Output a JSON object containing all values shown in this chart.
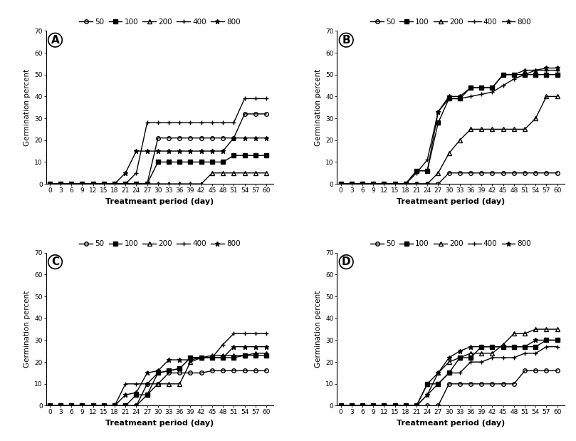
{
  "x": [
    0,
    3,
    6,
    9,
    12,
    15,
    18,
    21,
    24,
    27,
    30,
    33,
    36,
    39,
    42,
    45,
    48,
    51,
    54,
    57,
    60
  ],
  "series_labels": [
    "50",
    "100",
    "200",
    "400",
    "800"
  ],
  "series_markers": [
    "o",
    "s",
    "^",
    "+",
    "*"
  ],
  "series_fillstyle": [
    "none",
    "full",
    "none",
    "full",
    "full"
  ],
  "panels": {
    "A": {
      "label": "A",
      "data": {
        "50": [
          0,
          0,
          0,
          0,
          0,
          0,
          0,
          0,
          0,
          0,
          21,
          21,
          21,
          21,
          21,
          21,
          21,
          21,
          32,
          32,
          32
        ],
        "100": [
          0,
          0,
          0,
          0,
          0,
          0,
          0,
          0,
          0,
          0,
          10,
          10,
          10,
          10,
          10,
          10,
          10,
          13,
          13,
          13,
          13
        ],
        "200": [
          0,
          0,
          0,
          0,
          0,
          0,
          0,
          0,
          0,
          0,
          0,
          0,
          0,
          0,
          0,
          5,
          5,
          5,
          5,
          5,
          5
        ],
        "400": [
          0,
          0,
          0,
          0,
          0,
          0,
          0,
          0,
          5,
          28,
          28,
          28,
          28,
          28,
          28,
          28,
          28,
          28,
          39,
          39,
          39
        ],
        "800": [
          0,
          0,
          0,
          0,
          0,
          0,
          0,
          5,
          15,
          15,
          15,
          15,
          15,
          15,
          15,
          15,
          15,
          21,
          21,
          21,
          21
        ]
      }
    },
    "B": {
      "label": "B",
      "data": {
        "50": [
          0,
          0,
          0,
          0,
          0,
          0,
          0,
          0,
          0,
          0,
          5,
          5,
          5,
          5,
          5,
          5,
          5,
          5,
          5,
          5,
          5
        ],
        "100": [
          0,
          0,
          0,
          0,
          0,
          0,
          0,
          6,
          6,
          28,
          39,
          39,
          44,
          44,
          44,
          50,
          50,
          50,
          50,
          50,
          50
        ],
        "200": [
          0,
          0,
          0,
          0,
          0,
          0,
          0,
          0,
          0,
          5,
          14,
          20,
          25,
          25,
          25,
          25,
          25,
          25,
          30,
          40,
          40
        ],
        "400": [
          0,
          0,
          0,
          0,
          0,
          0,
          0,
          5,
          11,
          33,
          39,
          39,
          40,
          41,
          42,
          45,
          48,
          50,
          52,
          52,
          52
        ],
        "800": [
          0,
          0,
          0,
          0,
          0,
          0,
          0,
          6,
          6,
          33,
          40,
          40,
          44,
          44,
          44,
          50,
          50,
          52,
          52,
          53,
          53
        ]
      }
    },
    "C": {
      "label": "C",
      "data": {
        "50": [
          0,
          0,
          0,
          0,
          0,
          0,
          0,
          0,
          0,
          10,
          10,
          15,
          15,
          15,
          15,
          16,
          16,
          16,
          16,
          16,
          16
        ],
        "100": [
          0,
          0,
          0,
          0,
          0,
          0,
          0,
          0,
          5,
          5,
          15,
          16,
          17,
          22,
          22,
          22,
          22,
          22,
          23,
          23,
          23
        ],
        "200": [
          0,
          0,
          0,
          0,
          0,
          0,
          0,
          0,
          0,
          5,
          10,
          10,
          10,
          20,
          22,
          23,
          23,
          23,
          23,
          24,
          24
        ],
        "400": [
          0,
          0,
          0,
          0,
          0,
          0,
          0,
          10,
          10,
          10,
          15,
          16,
          17,
          22,
          22,
          22,
          28,
          33,
          33,
          33,
          33
        ],
        "800": [
          0,
          0,
          0,
          0,
          0,
          0,
          0,
          5,
          6,
          15,
          16,
          21,
          21,
          21,
          22,
          22,
          22,
          27,
          27,
          27,
          27
        ]
      }
    },
    "D": {
      "label": "D",
      "data": {
        "50": [
          0,
          0,
          0,
          0,
          0,
          0,
          0,
          0,
          0,
          0,
          10,
          10,
          10,
          10,
          10,
          10,
          10,
          16,
          16,
          16,
          16
        ],
        "100": [
          0,
          0,
          0,
          0,
          0,
          0,
          0,
          0,
          10,
          10,
          15,
          22,
          22,
          27,
          27,
          27,
          27,
          27,
          27,
          30,
          30
        ],
        "200": [
          0,
          0,
          0,
          0,
          0,
          0,
          0,
          0,
          10,
          15,
          20,
          22,
          24,
          24,
          24,
          28,
          33,
          33,
          35,
          35,
          35
        ],
        "400": [
          0,
          0,
          0,
          0,
          0,
          0,
          0,
          0,
          5,
          10,
          15,
          15,
          20,
          20,
          22,
          22,
          22,
          24,
          24,
          27,
          27
        ],
        "800": [
          0,
          0,
          0,
          0,
          0,
          0,
          0,
          0,
          5,
          15,
          22,
          25,
          27,
          27,
          27,
          27,
          27,
          27,
          30,
          30,
          30
        ]
      }
    }
  },
  "xlabel": "Treatmeant period (day)",
  "ylabel": "Germination percent",
  "ylim": [
    0,
    70
  ],
  "yticks": [
    0,
    10,
    20,
    30,
    40,
    50,
    60,
    70
  ],
  "xticks": [
    0,
    3,
    6,
    9,
    12,
    15,
    18,
    21,
    24,
    27,
    30,
    33,
    36,
    39,
    42,
    45,
    48,
    51,
    54,
    57,
    60
  ],
  "xtick_labels": [
    "0",
    "3",
    "6",
    "9",
    "12",
    "15",
    "18",
    "21",
    "24",
    "27",
    "30",
    "33",
    "36",
    "39",
    "42",
    "45",
    "48",
    "51",
    "54",
    "57",
    "60"
  ],
  "line_color": "black",
  "markersize": 4,
  "linewidth": 1.0,
  "panel_label_fontsize": 11,
  "legend_fontsize": 7.5,
  "axis_label_fontsize": 8,
  "ylabel_fontsize": 7.5,
  "tick_fontsize": 6.5
}
